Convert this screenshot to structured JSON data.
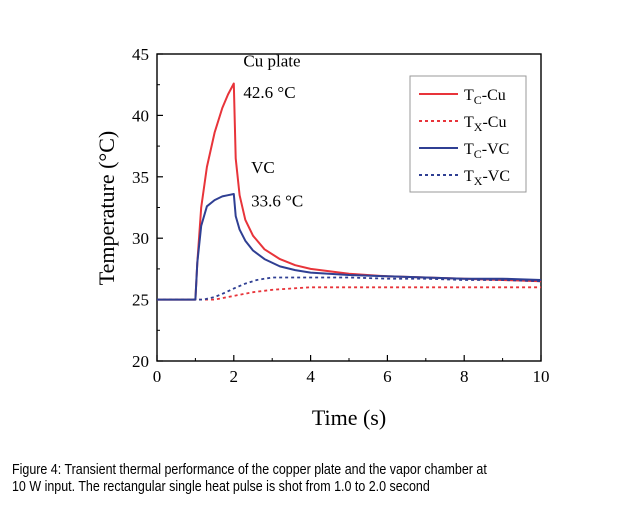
{
  "figure": {
    "caption_line1": "Figure 4: Transient thermal performance of the copper plate and the vapor chamber at",
    "caption_line2": "10 W input. The rectangular single heat pulse is shot from 1.0 to 2.0 second"
  },
  "chart_data": {
    "type": "line",
    "title": "",
    "xlabel": "Time (s)",
    "ylabel": "Temperature (°C)",
    "xlim": [
      0,
      10
    ],
    "ylim": [
      20,
      45
    ],
    "xticks": [
      "0",
      "2",
      "4",
      "6",
      "8",
      "10"
    ],
    "yticks": [
      "20",
      "25",
      "30",
      "35",
      "40",
      "45"
    ],
    "grid": false,
    "legend_position": "top-right",
    "annotations": [
      {
        "text": "Cu plate",
        "x": 2.25,
        "y": 44.0
      },
      {
        "text": "42.6 °C",
        "x": 2.25,
        "y": 41.4
      },
      {
        "text": "VC",
        "x": 2.45,
        "y": 35.3
      },
      {
        "text": "33.6 °C",
        "x": 2.45,
        "y": 32.6
      }
    ],
    "series": [
      {
        "name": "T_C-Cu",
        "legend_main": "T",
        "legend_sub": "C",
        "legend_rest": "-Cu",
        "color": "#e8343a",
        "dash": "solid",
        "x": [
          0,
          1.0,
          1.05,
          1.15,
          1.3,
          1.5,
          1.7,
          1.85,
          2.0,
          2.05,
          2.15,
          2.3,
          2.5,
          2.8,
          3.2,
          3.6,
          4.0,
          5.0,
          6.0,
          7.0,
          8.0,
          9.0,
          10.0
        ],
        "y": [
          25.0,
          25.0,
          28.0,
          32.5,
          35.8,
          38.6,
          40.6,
          41.7,
          42.6,
          36.5,
          33.5,
          31.5,
          30.2,
          29.1,
          28.3,
          27.8,
          27.5,
          27.1,
          26.9,
          26.8,
          26.7,
          26.6,
          26.5
        ]
      },
      {
        "name": "T_X-Cu",
        "legend_main": "T",
        "legend_sub": "X",
        "legend_rest": "-Cu",
        "color": "#e8343a",
        "dash": "dotted",
        "x": [
          0,
          1.5,
          2.0,
          2.5,
          3.0,
          3.5,
          4.0,
          5.0,
          6.0,
          7.0,
          8.0,
          9.0,
          10.0
        ],
        "y": [
          25.0,
          25.0,
          25.3,
          25.6,
          25.8,
          25.9,
          26.0,
          26.0,
          26.0,
          26.0,
          26.0,
          26.0,
          26.0
        ]
      },
      {
        "name": "T_C-VC",
        "legend_main": "T",
        "legend_sub": "C",
        "legend_rest": "-VC",
        "color": "#2f3f93",
        "dash": "solid",
        "x": [
          0,
          1.0,
          1.05,
          1.15,
          1.3,
          1.5,
          1.7,
          1.85,
          2.0,
          2.05,
          2.15,
          2.3,
          2.5,
          2.8,
          3.2,
          3.6,
          4.0,
          5.0,
          6.0,
          7.0,
          8.0,
          9.0,
          10.0
        ],
        "y": [
          25.0,
          25.0,
          28.0,
          31.0,
          32.6,
          33.1,
          33.4,
          33.5,
          33.6,
          31.8,
          30.7,
          29.8,
          29.0,
          28.3,
          27.7,
          27.4,
          27.2,
          27.0,
          26.9,
          26.8,
          26.7,
          26.7,
          26.6
        ]
      },
      {
        "name": "T_X-VC",
        "legend_main": "T",
        "legend_sub": "X",
        "legend_rest": "-VC",
        "color": "#2f3f93",
        "dash": "dotted",
        "x": [
          0,
          1.2,
          1.5,
          1.8,
          2.0,
          2.3,
          2.6,
          3.0,
          3.5,
          4.0,
          5.0,
          6.0,
          7.0,
          8.0,
          9.0,
          10.0
        ],
        "y": [
          25.0,
          25.0,
          25.2,
          25.6,
          25.9,
          26.3,
          26.6,
          26.8,
          26.8,
          26.8,
          26.8,
          26.7,
          26.7,
          26.6,
          26.6,
          26.5
        ]
      }
    ]
  }
}
